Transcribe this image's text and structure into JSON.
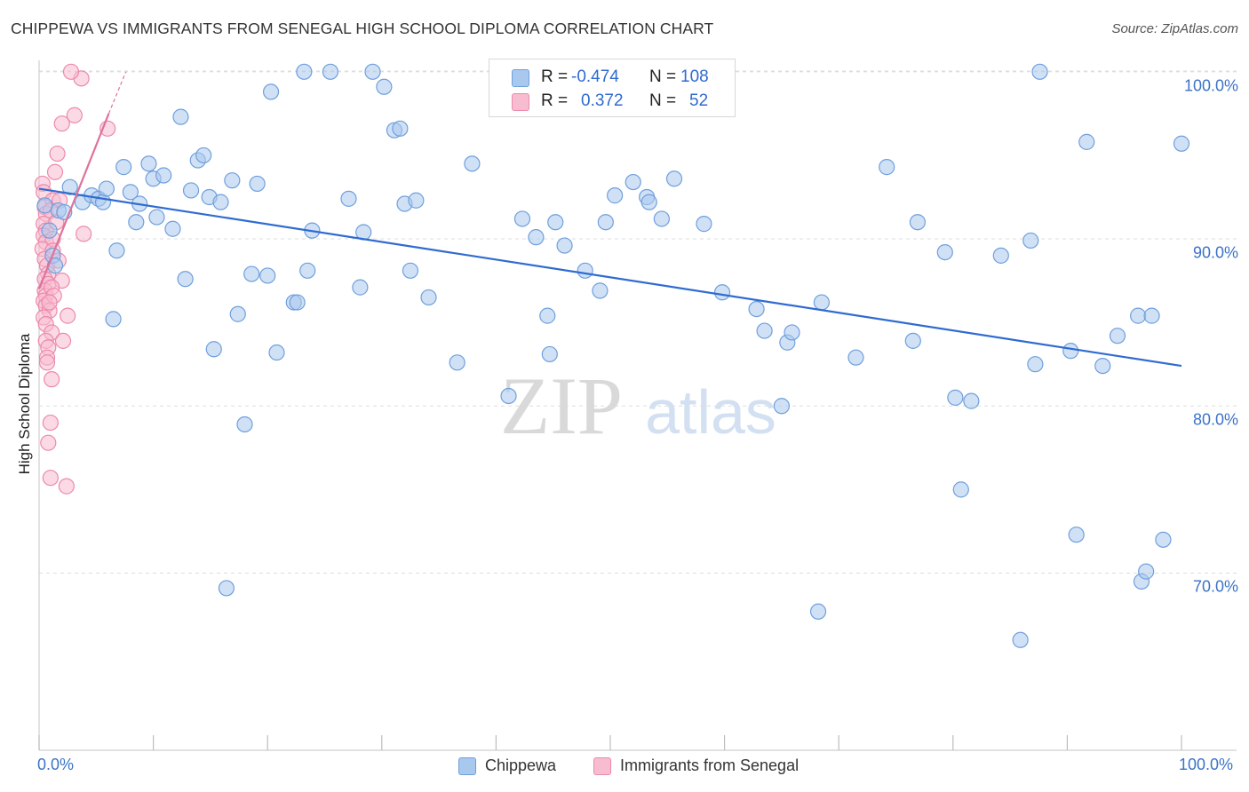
{
  "title": "CHIPPEWA VS IMMIGRANTS FROM SENEGAL HIGH SCHOOL DIPLOMA CORRELATION CHART",
  "source": "Source: ZipAtlas.com",
  "watermark": {
    "zip": "ZIP",
    "atlas": "atlas"
  },
  "colors": {
    "blue_fill": "#a9c8ee",
    "blue_stroke": "#6f9fdc",
    "blue_line": "#2f6bd0",
    "pink_fill": "#f7bcd0",
    "pink_stroke": "#ec8aac",
    "pink_line": "#e0719a",
    "axis_text": "#3b73c7",
    "grid": "#dddddd"
  },
  "legend": {
    "rows": [
      {
        "r_label": "R =",
        "r_value": "-0.474",
        "n_label": "N =",
        "n_value": "108",
        "color": "#a9c8ee"
      },
      {
        "r_label": "R =",
        "r_value": "0.372",
        "n_label": "N =",
        "n_value": "52",
        "color": "#f7bcd0"
      }
    ],
    "bottom": [
      {
        "label": "Chippewa",
        "color": "#a9c8ee"
      },
      {
        "label": "Immigrants from Senegal",
        "color": "#f7bcd0"
      }
    ]
  },
  "chart_data": {
    "type": "scatter",
    "title": "CHIPPEWA VS IMMIGRANTS FROM SENEGAL HIGH SCHOOL DIPLOMA CORRELATION CHART",
    "xlabel": "",
    "ylabel": "High School Diploma",
    "xlim": [
      0,
      100
    ],
    "ylim": [
      59.4,
      101.0
    ],
    "x_tick_labels": [
      "0.0%",
      "100.0%"
    ],
    "y_ticks": [
      70,
      80,
      90,
      100
    ],
    "y_tick_labels": [
      "70.0%",
      "80.0%",
      "90.0%",
      "100.0%"
    ],
    "grid": true,
    "legend_position": "top-center",
    "series": [
      {
        "name": "Chippewa",
        "R": -0.474,
        "N": 108,
        "trend": {
          "x": [
            0,
            100
          ],
          "y": [
            93.0,
            82.4
          ]
        },
        "points": [
          [
            0.5,
            92.0
          ],
          [
            0.9,
            90.5
          ],
          [
            1.2,
            89.0
          ],
          [
            1.4,
            88.4
          ],
          [
            1.7,
            91.7
          ],
          [
            2.2,
            91.6
          ],
          [
            2.7,
            93.1
          ],
          [
            3.8,
            92.2
          ],
          [
            4.6,
            92.6
          ],
          [
            5.2,
            92.4
          ],
          [
            5.6,
            92.2
          ],
          [
            5.9,
            93.0
          ],
          [
            6.5,
            85.2
          ],
          [
            6.8,
            89.3
          ],
          [
            7.4,
            94.3
          ],
          [
            8.0,
            92.8
          ],
          [
            8.5,
            91.0
          ],
          [
            8.8,
            92.1
          ],
          [
            9.6,
            94.5
          ],
          [
            10.0,
            93.6
          ],
          [
            10.3,
            91.3
          ],
          [
            10.9,
            93.8
          ],
          [
            11.7,
            90.6
          ],
          [
            12.4,
            97.3
          ],
          [
            12.8,
            87.6
          ],
          [
            13.3,
            92.9
          ],
          [
            13.9,
            94.7
          ],
          [
            14.4,
            95.0
          ],
          [
            14.9,
            92.5
          ],
          [
            15.3,
            83.4
          ],
          [
            15.9,
            92.2
          ],
          [
            16.4,
            69.1
          ],
          [
            16.9,
            93.5
          ],
          [
            17.4,
            85.5
          ],
          [
            18.0,
            78.9
          ],
          [
            18.6,
            87.9
          ],
          [
            19.1,
            93.3
          ],
          [
            20.0,
            87.8
          ],
          [
            20.3,
            98.8
          ],
          [
            20.8,
            83.2
          ],
          [
            22.3,
            86.2
          ],
          [
            22.6,
            86.2
          ],
          [
            23.2,
            100.0
          ],
          [
            23.5,
            88.1
          ],
          [
            23.9,
            90.5
          ],
          [
            25.5,
            100.0
          ],
          [
            27.1,
            92.4
          ],
          [
            28.1,
            87.1
          ],
          [
            28.4,
            90.4
          ],
          [
            29.2,
            100.0
          ],
          [
            30.2,
            99.1
          ],
          [
            31.1,
            96.5
          ],
          [
            31.6,
            96.6
          ],
          [
            32.0,
            92.1
          ],
          [
            32.5,
            88.1
          ],
          [
            33.0,
            92.3
          ],
          [
            34.1,
            86.5
          ],
          [
            36.6,
            82.6
          ],
          [
            37.9,
            94.5
          ],
          [
            41.1,
            80.6
          ],
          [
            42.3,
            91.2
          ],
          [
            43.5,
            90.1
          ],
          [
            44.5,
            85.4
          ],
          [
            44.7,
            83.1
          ],
          [
            45.2,
            91.0
          ],
          [
            46.0,
            89.6
          ],
          [
            47.8,
            88.1
          ],
          [
            49.1,
            86.9
          ],
          [
            49.6,
            91.0
          ],
          [
            50.4,
            92.6
          ],
          [
            52.0,
            93.4
          ],
          [
            53.2,
            92.5
          ],
          [
            53.4,
            92.2
          ],
          [
            54.5,
            91.2
          ],
          [
            55.6,
            93.6
          ],
          [
            58.2,
            90.9
          ],
          [
            59.8,
            86.8
          ],
          [
            62.8,
            85.8
          ],
          [
            63.5,
            84.5
          ],
          [
            65.0,
            80.0
          ],
          [
            65.5,
            83.8
          ],
          [
            65.9,
            84.4
          ],
          [
            68.2,
            67.7
          ],
          [
            68.5,
            86.2
          ],
          [
            71.5,
            82.9
          ],
          [
            74.2,
            94.3
          ],
          [
            76.5,
            83.9
          ],
          [
            76.9,
            91.0
          ],
          [
            79.3,
            89.2
          ],
          [
            80.2,
            80.5
          ],
          [
            80.7,
            75.0
          ],
          [
            81.6,
            80.3
          ],
          [
            84.2,
            89.0
          ],
          [
            85.9,
            66.0
          ],
          [
            86.8,
            89.9
          ],
          [
            87.2,
            82.5
          ],
          [
            87.6,
            100.0
          ],
          [
            90.3,
            83.3
          ],
          [
            90.8,
            72.3
          ],
          [
            91.7,
            95.8
          ],
          [
            93.1,
            82.4
          ],
          [
            94.4,
            84.2
          ],
          [
            96.2,
            85.4
          ],
          [
            96.5,
            69.5
          ],
          [
            96.9,
            70.1
          ],
          [
            97.4,
            85.4
          ],
          [
            98.4,
            72.0
          ],
          [
            100.0,
            95.7
          ]
        ]
      },
      {
        "name": "Immigrants from Senegal",
        "R": 0.372,
        "N": 52,
        "trend": {
          "x": [
            0,
            6.1
          ],
          "y": [
            87.0,
            97.5
          ]
        },
        "trend_dashed": {
          "x": [
            6.1,
            7.6
          ],
          "y": [
            97.5,
            100.0
          ]
        },
        "points": [
          [
            0.3,
            93.3
          ],
          [
            0.4,
            92.8
          ],
          [
            0.5,
            91.9
          ],
          [
            0.6,
            91.5
          ],
          [
            0.4,
            90.9
          ],
          [
            0.6,
            90.5
          ],
          [
            0.4,
            90.2
          ],
          [
            0.6,
            89.8
          ],
          [
            0.3,
            89.4
          ],
          [
            0.5,
            88.8
          ],
          [
            0.7,
            88.4
          ],
          [
            0.8,
            87.9
          ],
          [
            0.5,
            87.6
          ],
          [
            0.8,
            87.3
          ],
          [
            0.5,
            86.9
          ],
          [
            0.6,
            86.6
          ],
          [
            0.4,
            86.3
          ],
          [
            0.6,
            86.0
          ],
          [
            0.9,
            85.7
          ],
          [
            0.4,
            85.3
          ],
          [
            0.6,
            84.9
          ],
          [
            1.1,
            84.4
          ],
          [
            0.6,
            83.9
          ],
          [
            0.8,
            83.5
          ],
          [
            0.7,
            82.9
          ],
          [
            0.7,
            82.6
          ],
          [
            1.1,
            81.6
          ],
          [
            1.0,
            79.0
          ],
          [
            0.8,
            77.8
          ],
          [
            1.0,
            75.7
          ],
          [
            2.4,
            75.2
          ],
          [
            1.4,
            94.0
          ],
          [
            1.6,
            95.1
          ],
          [
            2.0,
            96.9
          ],
          [
            3.1,
            97.4
          ],
          [
            3.7,
            99.6
          ],
          [
            2.8,
            100.0
          ],
          [
            6.0,
            96.6
          ],
          [
            1.2,
            92.3
          ],
          [
            1.8,
            92.3
          ],
          [
            1.0,
            91.7
          ],
          [
            1.5,
            91.0
          ],
          [
            1.2,
            90.0
          ],
          [
            2.0,
            87.5
          ],
          [
            2.5,
            85.4
          ],
          [
            2.1,
            83.9
          ],
          [
            1.2,
            89.3
          ],
          [
            1.7,
            88.7
          ],
          [
            3.9,
            90.3
          ],
          [
            1.1,
            87.1
          ],
          [
            1.3,
            86.6
          ],
          [
            0.9,
            86.2
          ]
        ]
      }
    ]
  }
}
